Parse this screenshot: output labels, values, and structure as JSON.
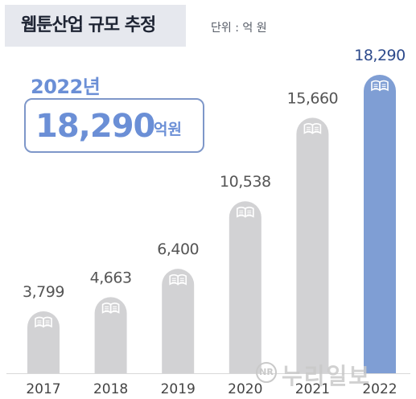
{
  "header": {
    "title": "웹툰산업 규모 추정",
    "unit": "단위 : 억 원"
  },
  "highlight": {
    "year": "2022년",
    "value": "18,290",
    "unit": "억원"
  },
  "watermark": {
    "logo": "NR",
    "text": "누리일보"
  },
  "colors": {
    "bar_default": "#d2d2d4",
    "bar_highlight": "#7f9ed4",
    "label_default": "#555555",
    "label_highlight": "#2d4a8c",
    "book_icon": "#ffffff"
  },
  "chart_data": {
    "type": "bar",
    "title": "웹툰산업 규모 추정",
    "xlabel": "",
    "ylabel": "",
    "categories": [
      "2017",
      "2018",
      "2019",
      "2020",
      "2021",
      "2022"
    ],
    "values": [
      3799,
      4663,
      6400,
      10538,
      15660,
      18290
    ],
    "value_labels": [
      "3,799",
      "4,663",
      "6,400",
      "10,538",
      "15,660",
      "18,290"
    ],
    "highlight_index": 5,
    "ylim": [
      0,
      18290
    ],
    "grid": false,
    "legend": "none"
  }
}
